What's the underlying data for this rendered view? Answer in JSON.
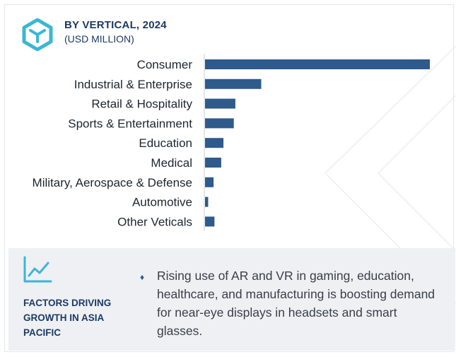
{
  "header": {
    "title": "BY VERTICAL, 2024",
    "subtitle": "(USD MILLION)"
  },
  "chart_data": {
    "type": "bar",
    "orientation": "horizontal",
    "categories": [
      "Consumer",
      "Industrial & Enterprise",
      "Retail & Hospitality",
      "Sports & Entertainment",
      "Education",
      "Medical",
      "Military, Aerospace & Defense",
      "Automotive",
      "Other Veticals"
    ],
    "values": [
      100,
      25,
      13.5,
      12.8,
      8.2,
      7.2,
      3.8,
      1.4,
      4.2
    ],
    "value_scale": "relative (no axis ticks shown)",
    "bar_color": "#2e5a8c",
    "grid": false,
    "legend": "none"
  },
  "footer": {
    "icon": "trend-line-icon",
    "heading": "FACTORS DRIVING GROWTH IN ASIA PACIFIC",
    "bullet_symbol": "♦",
    "bullet_text": "Rising use of AR and VR in gaming, education, healthcare, and manufacturing is boosting demand for near-eye displays in headsets and smart glasses."
  },
  "colors": {
    "brand": "#1d3a66",
    "accent": "#3bb6d6",
    "bar": "#2e5a8c",
    "panel": "#eef0f4"
  }
}
